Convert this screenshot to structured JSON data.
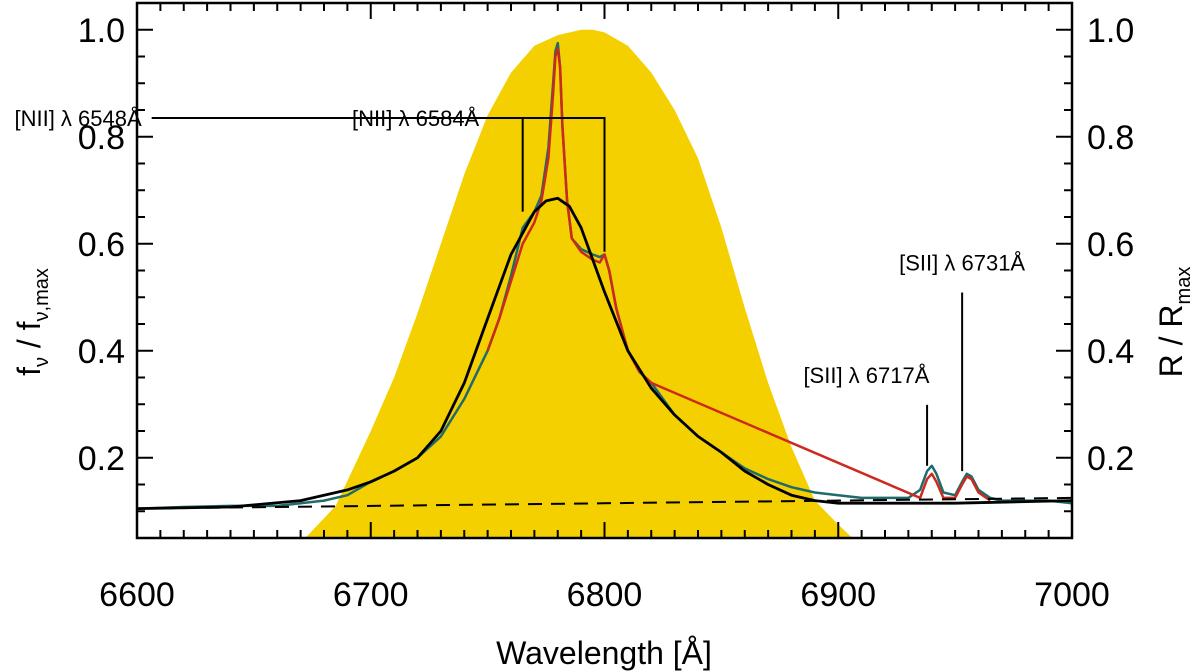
{
  "chart_data": {
    "type": "line",
    "xlabel": "Wavelength [Å]",
    "ylabel_left": "f_ν / f_ν,max",
    "ylabel_left_parts": {
      "main": "f",
      "sub1": "ν",
      "sep": " / f",
      "sub2": "ν,max"
    },
    "ylabel_right": "R / R_max",
    "ylabel_right_parts": {
      "main": "R / R",
      "sub": "max"
    },
    "xlim": [
      6600,
      7000
    ],
    "ylim": [
      0.05,
      1.05
    ],
    "xticks": [
      6600,
      6700,
      6800,
      6900,
      7000
    ],
    "xtick_labels": [
      "6600",
      "6700",
      "6800",
      "6900",
      "7000"
    ],
    "yticks": [
      0.2,
      0.4,
      0.6,
      0.8,
      1.0
    ],
    "ytick_labels": [
      "0.2",
      "0.4",
      "0.6",
      "0.8",
      "1.0"
    ],
    "x_minor_step": 10,
    "y_minor_step": 0.05,
    "colors": {
      "filter": "#f5d000",
      "observed": "#1f6b6b",
      "model_lines": "#cc2a1f",
      "broad_fit": "#000000",
      "continuum": "#000000"
    },
    "series": [
      {
        "name": "filter response R / R_max",
        "style": "filled",
        "x": [
          6672,
          6685,
          6700,
          6710,
          6720,
          6730,
          6740,
          6750,
          6760,
          6770,
          6780,
          6790,
          6795,
          6800,
          6810,
          6820,
          6830,
          6840,
          6850,
          6860,
          6870,
          6880,
          6890,
          6900,
          6906
        ],
        "y": [
          0.05,
          0.11,
          0.25,
          0.35,
          0.47,
          0.6,
          0.73,
          0.84,
          0.92,
          0.97,
          0.99,
          1.0,
          1.0,
          0.995,
          0.97,
          0.92,
          0.85,
          0.76,
          0.63,
          0.48,
          0.34,
          0.22,
          0.12,
          0.075,
          0.05
        ]
      },
      {
        "name": "observed spectrum",
        "style": "line",
        "x": [
          6600,
          6620,
          6640,
          6660,
          6680,
          6690,
          6700,
          6710,
          6720,
          6730,
          6740,
          6750,
          6755,
          6760,
          6765,
          6770,
          6773,
          6776,
          6778,
          6779,
          6780,
          6781,
          6782,
          6784,
          6786,
          6790,
          6795,
          6798,
          6800,
          6802,
          6805,
          6810,
          6815,
          6820,
          6830,
          6840,
          6850,
          6860,
          6870,
          6880,
          6890,
          6900,
          6910,
          6920,
          6930,
          6935,
          6938,
          6940,
          6942,
          6945,
          6950,
          6953,
          6955,
          6957,
          6960,
          6965,
          6970,
          6980,
          6990,
          7000
        ],
        "y": [
          0.105,
          0.108,
          0.11,
          0.11,
          0.12,
          0.13,
          0.155,
          0.175,
          0.2,
          0.24,
          0.31,
          0.4,
          0.46,
          0.54,
          0.63,
          0.66,
          0.69,
          0.78,
          0.9,
          0.96,
          0.975,
          0.93,
          0.82,
          0.68,
          0.61,
          0.59,
          0.58,
          0.575,
          0.58,
          0.55,
          0.48,
          0.4,
          0.36,
          0.34,
          0.28,
          0.24,
          0.21,
          0.18,
          0.16,
          0.145,
          0.135,
          0.13,
          0.125,
          0.125,
          0.125,
          0.14,
          0.175,
          0.185,
          0.17,
          0.135,
          0.13,
          0.155,
          0.17,
          0.165,
          0.14,
          0.125,
          0.12,
          0.12,
          0.12,
          0.115
        ]
      },
      {
        "name": "model with narrow lines",
        "style": "line",
        "x": [
          6750,
          6755,
          6760,
          6765,
          6770,
          6773,
          6776,
          6778,
          6779,
          6780,
          6781,
          6782,
          6784,
          6786,
          6790,
          6795,
          6798,
          6800,
          6802,
          6805,
          6810,
          6815,
          6820,
          6935,
          6938,
          6940,
          6942,
          6945,
          6950,
          6953,
          6955,
          6957,
          6960,
          6965
        ],
        "y": [
          0.4,
          0.46,
          0.53,
          0.6,
          0.64,
          0.68,
          0.76,
          0.88,
          0.95,
          0.965,
          0.93,
          0.82,
          0.68,
          0.61,
          0.585,
          0.57,
          0.565,
          0.58,
          0.55,
          0.48,
          0.4,
          0.36,
          0.34,
          0.125,
          0.16,
          0.17,
          0.155,
          0.125,
          0.125,
          0.15,
          0.165,
          0.16,
          0.135,
          0.12
        ]
      },
      {
        "name": "broad component fit",
        "style": "line",
        "x": [
          6600,
          6640,
          6670,
          6690,
          6700,
          6710,
          6720,
          6730,
          6740,
          6750,
          6760,
          6770,
          6775,
          6780,
          6785,
          6790,
          6800,
          6810,
          6820,
          6830,
          6840,
          6850,
          6860,
          6870,
          6880,
          6890,
          6900,
          6920,
          6950,
          6980,
          7000
        ],
        "y": [
          0.105,
          0.108,
          0.12,
          0.14,
          0.155,
          0.175,
          0.2,
          0.25,
          0.34,
          0.46,
          0.58,
          0.66,
          0.68,
          0.685,
          0.67,
          0.63,
          0.51,
          0.4,
          0.33,
          0.28,
          0.24,
          0.21,
          0.175,
          0.15,
          0.13,
          0.12,
          0.115,
          0.115,
          0.115,
          0.118,
          0.12
        ]
      },
      {
        "name": "continuum",
        "style": "dashed",
        "x": [
          6600,
          7000
        ],
        "y": [
          0.105,
          0.125
        ]
      }
    ],
    "annotations": [
      {
        "text": "[NII] λ 6548Å",
        "label_x": 6602,
        "label_y": 0.835,
        "anchor": "end",
        "line_end_x": 6765,
        "line_end_y": 0.66
      },
      {
        "text": "[NII] λ 6584Å",
        "label_x": 6692,
        "label_y": 0.835,
        "anchor": "start",
        "line_end_x": 6800,
        "line_end_y": 0.585
      },
      {
        "text": "[SII] λ 6717Å",
        "label_x": 6919,
        "label_y": 0.355,
        "anchor": "end",
        "line_end_x": 6938,
        "line_end_y": 0.185
      },
      {
        "text": "[SII] λ 6731Å",
        "label_x": 6953,
        "label_y": 0.565,
        "anchor": "middle",
        "line_end_x": 6953,
        "line_end_y": 0.175
      }
    ]
  }
}
